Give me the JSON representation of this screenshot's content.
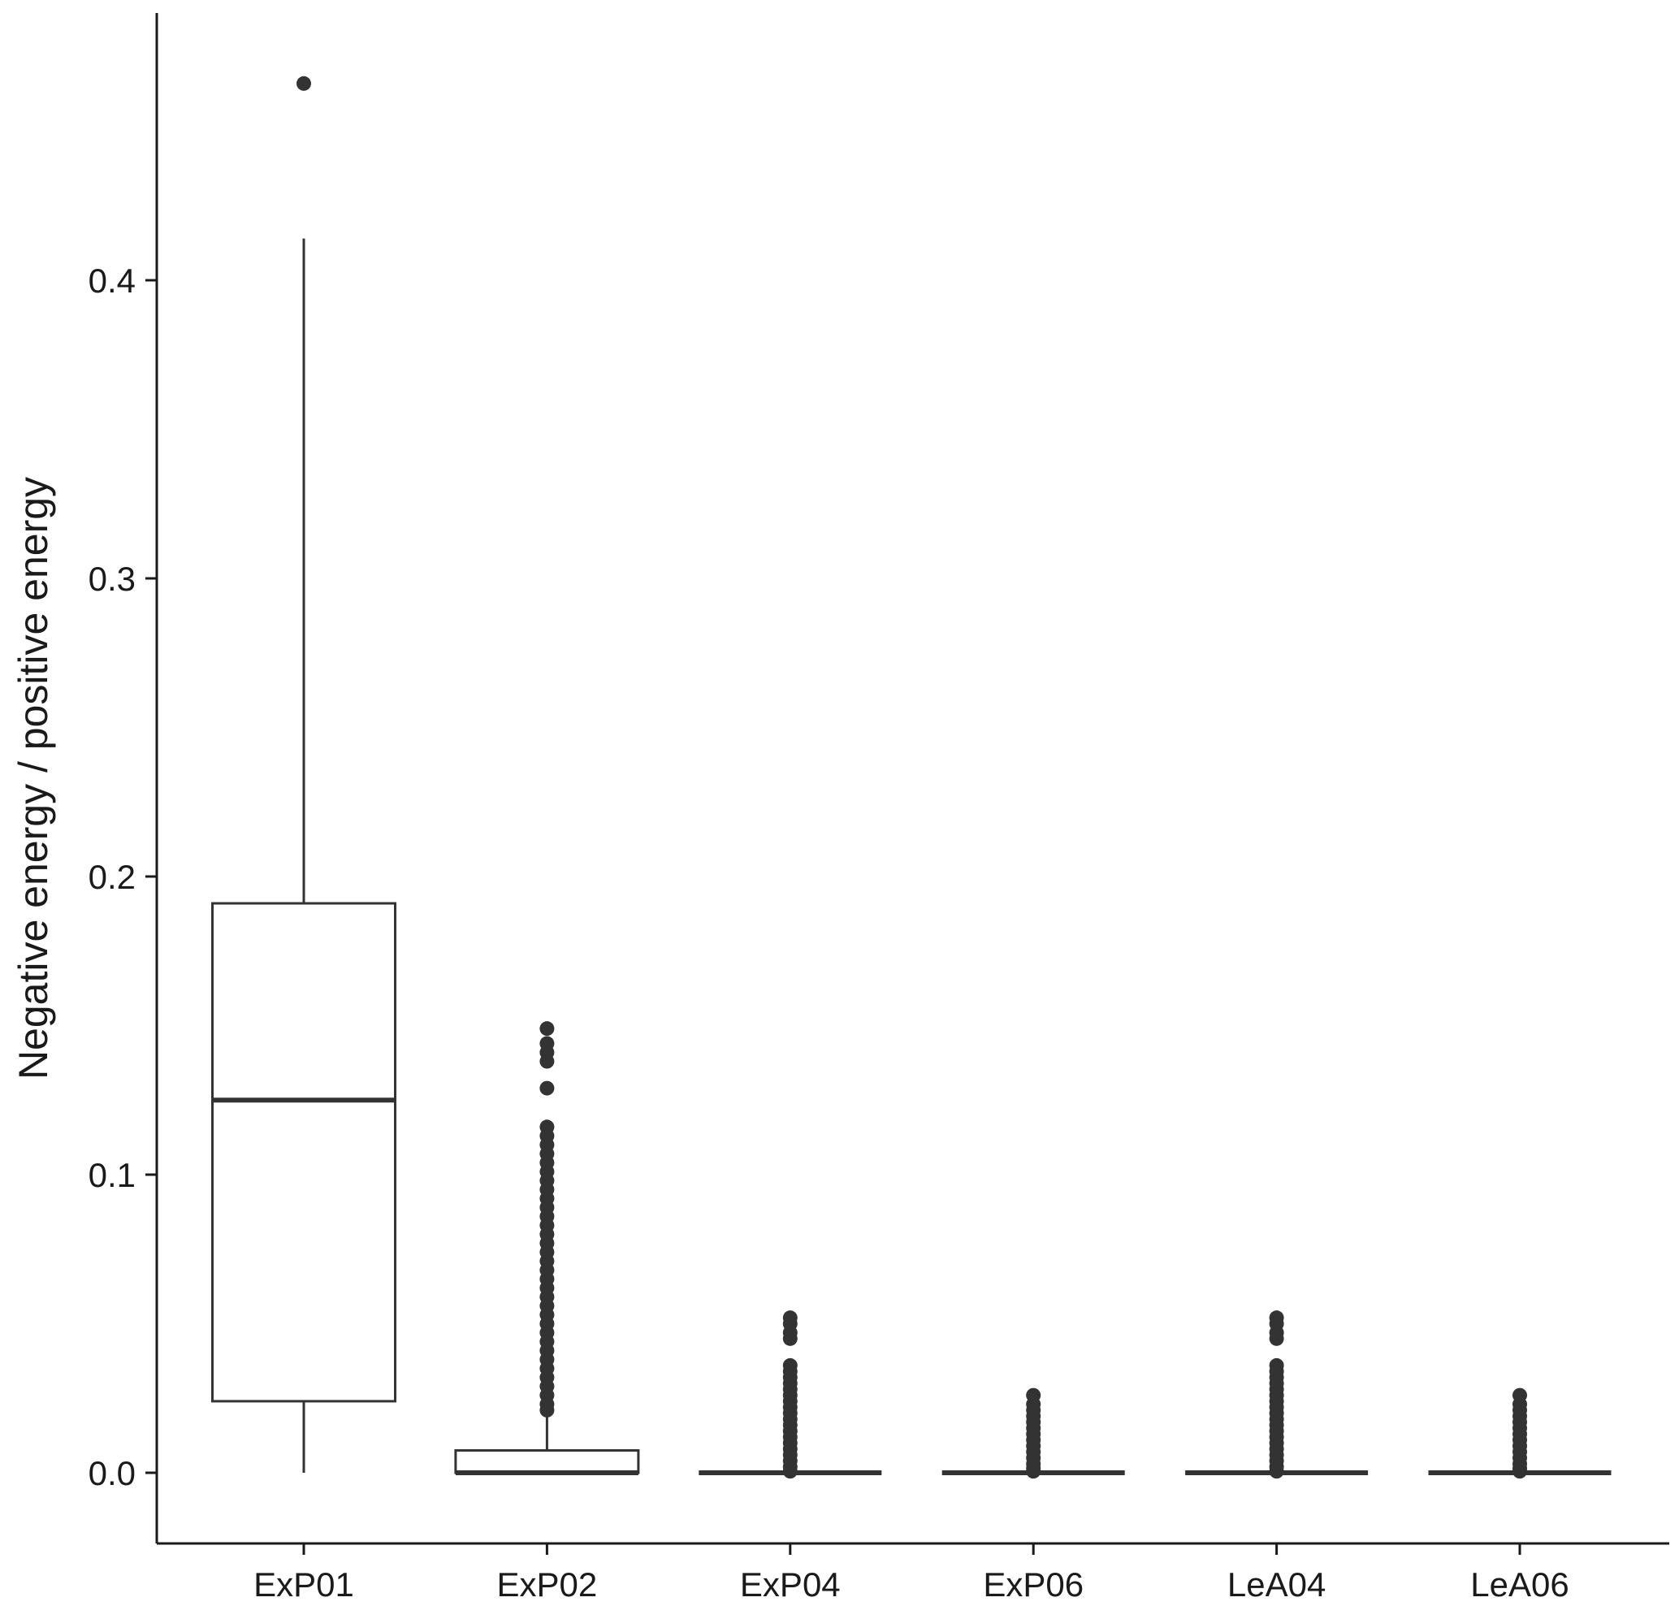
{
  "chart_data": {
    "type": "box",
    "title": "",
    "xlabel": "",
    "ylabel": "Negative energy / positive energy",
    "ylim": [
      -0.023,
      0.49
    ],
    "yticks": [
      0.0,
      0.1,
      0.2,
      0.3,
      0.4
    ],
    "ytick_labels": [
      "0.0",
      "0.1",
      "0.2",
      "0.3",
      "0.4"
    ],
    "grid": false,
    "legend": "none",
    "colors": {
      "stroke": "#333333",
      "fill": "#ffffff",
      "outlier": "#333333"
    },
    "categories": [
      "ExP01",
      "ExP02",
      "ExP04",
      "ExP06",
      "LeA04",
      "LeA06"
    ],
    "boxes": [
      {
        "category": "ExP01",
        "whisker_low": 0.0,
        "q1": 0.024,
        "median": 0.125,
        "q3": 0.191,
        "whisker_high": 0.414,
        "outliers": [
          0.466
        ]
      },
      {
        "category": "ExP02",
        "whisker_low": 0.0,
        "q1": 0.0,
        "median": 0.0,
        "q3": 0.0075,
        "whisker_high": 0.019,
        "outliers": [
          0.149,
          0.144,
          0.141,
          0.138,
          0.129,
          0.116,
          0.113,
          0.11,
          0.107,
          0.104,
          0.101,
          0.098,
          0.095,
          0.092,
          0.089,
          0.086,
          0.083,
          0.08,
          0.077,
          0.074,
          0.071,
          0.068,
          0.065,
          0.062,
          0.059,
          0.056,
          0.053,
          0.05,
          0.047,
          0.044,
          0.041,
          0.038,
          0.035,
          0.032,
          0.029,
          0.026,
          0.023,
          0.021
        ]
      },
      {
        "category": "ExP04",
        "whisker_low": 0.0,
        "q1": 0.0,
        "median": 0.0,
        "q3": 0.0,
        "whisker_high": 0.0,
        "outliers": [
          0.052,
          0.05,
          0.047,
          0.045,
          0.036,
          0.034,
          0.032,
          0.03,
          0.028,
          0.026,
          0.024,
          0.022,
          0.02,
          0.018,
          0.016,
          0.014,
          0.012,
          0.01,
          0.008,
          0.006,
          0.004,
          0.002,
          0.0005
        ]
      },
      {
        "category": "ExP06",
        "whisker_low": 0.0,
        "q1": 0.0,
        "median": 0.0,
        "q3": 0.0,
        "whisker_high": 0.0,
        "outliers": [
          0.026,
          0.023,
          0.021,
          0.019,
          0.017,
          0.015,
          0.013,
          0.011,
          0.009,
          0.007,
          0.005,
          0.003,
          0.0015,
          0.0005
        ]
      },
      {
        "category": "LeA04",
        "whisker_low": 0.0,
        "q1": 0.0,
        "median": 0.0,
        "q3": 0.0,
        "whisker_high": 0.0,
        "outliers": [
          0.052,
          0.05,
          0.047,
          0.045,
          0.036,
          0.034,
          0.032,
          0.03,
          0.028,
          0.026,
          0.024,
          0.022,
          0.02,
          0.018,
          0.016,
          0.014,
          0.012,
          0.01,
          0.008,
          0.006,
          0.004,
          0.002,
          0.0005
        ]
      },
      {
        "category": "LeA06",
        "whisker_low": 0.0,
        "q1": 0.0,
        "median": 0.0,
        "q3": 0.0,
        "whisker_high": 0.0,
        "outliers": [
          0.026,
          0.023,
          0.021,
          0.019,
          0.017,
          0.015,
          0.013,
          0.011,
          0.009,
          0.007,
          0.005,
          0.003,
          0.0015,
          0.0005
        ]
      }
    ]
  }
}
